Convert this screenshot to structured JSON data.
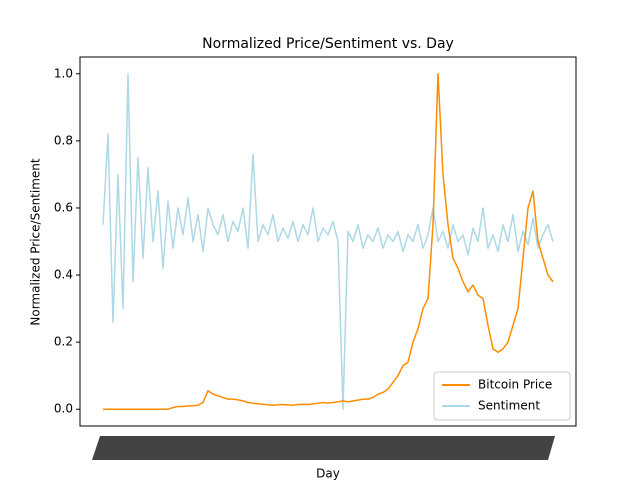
{
  "chart_data": {
    "type": "line",
    "title": "Normalized Price/Sentiment vs. Day",
    "x_label": "Day",
    "y_label": "Normalized Price/Sentiment",
    "ylim": [
      -0.05,
      1.05
    ],
    "yticks": [
      {
        "value": 0,
        "label": "0.0"
      },
      {
        "value": 0.2,
        "label": "0.2"
      },
      {
        "value": 0.4,
        "label": "0.4"
      },
      {
        "value": 0.6,
        "label": "0.6"
      },
      {
        "value": 0.8,
        "label": "0.8"
      },
      {
        "value": 1,
        "label": "1.0"
      }
    ],
    "legend": "lower right",
    "series": [
      {
        "name": "Bitcoin Price",
        "color": "#ff8c00",
        "values": [
          0,
          0,
          0,
          0,
          0,
          0,
          0,
          0,
          0,
          0,
          0,
          0,
          0,
          0,
          0.005,
          0.008,
          0.008,
          0.01,
          0.01,
          0.012,
          0.02,
          0.055,
          0.045,
          0.04,
          0.035,
          0.03,
          0.03,
          0.028,
          0.025,
          0.02,
          0.018,
          0.016,
          0.015,
          0.013,
          0.012,
          0.013,
          0.014,
          0.013,
          0.012,
          0.014,
          0.015,
          0.014,
          0.016,
          0.018,
          0.02,
          0.018,
          0.02,
          0.022,
          0.025,
          0.022,
          0.025,
          0.027,
          0.03,
          0.03,
          0.035,
          0.045,
          0.05,
          0.06,
          0.08,
          0.1,
          0.13,
          0.14,
          0.2,
          0.24,
          0.3,
          0.33,
          0.55,
          1.0,
          0.7,
          0.55,
          0.45,
          0.42,
          0.38,
          0.35,
          0.37,
          0.34,
          0.33,
          0.25,
          0.18,
          0.17,
          0.18,
          0.2,
          0.25,
          0.3,
          0.45,
          0.6,
          0.65,
          0.5,
          0.45,
          0.4,
          0.38
        ]
      },
      {
        "name": "Sentiment",
        "color": "#add8e6",
        "values": [
          0.55,
          0.82,
          0.26,
          0.7,
          0.3,
          1.0,
          0.38,
          0.75,
          0.45,
          0.72,
          0.5,
          0.65,
          0.42,
          0.62,
          0.48,
          0.6,
          0.52,
          0.63,
          0.5,
          0.58,
          0.47,
          0.6,
          0.55,
          0.52,
          0.58,
          0.5,
          0.56,
          0.53,
          0.6,
          0.48,
          0.76,
          0.5,
          0.55,
          0.52,
          0.58,
          0.5,
          0.54,
          0.51,
          0.56,
          0.5,
          0.55,
          0.52,
          0.6,
          0.5,
          0.54,
          0.52,
          0.56,
          0.5,
          0.0,
          0.53,
          0.5,
          0.55,
          0.48,
          0.52,
          0.5,
          0.54,
          0.48,
          0.52,
          0.5,
          0.53,
          0.47,
          0.52,
          0.5,
          0.55,
          0.48,
          0.52,
          0.6,
          0.5,
          0.53,
          0.48,
          0.55,
          0.5,
          0.52,
          0.46,
          0.54,
          0.5,
          0.6,
          0.48,
          0.52,
          0.47,
          0.55,
          0.5,
          0.58,
          0.47,
          0.53,
          0.49,
          0.57,
          0.48,
          0.52,
          0.55,
          0.5
        ]
      }
    ]
  }
}
